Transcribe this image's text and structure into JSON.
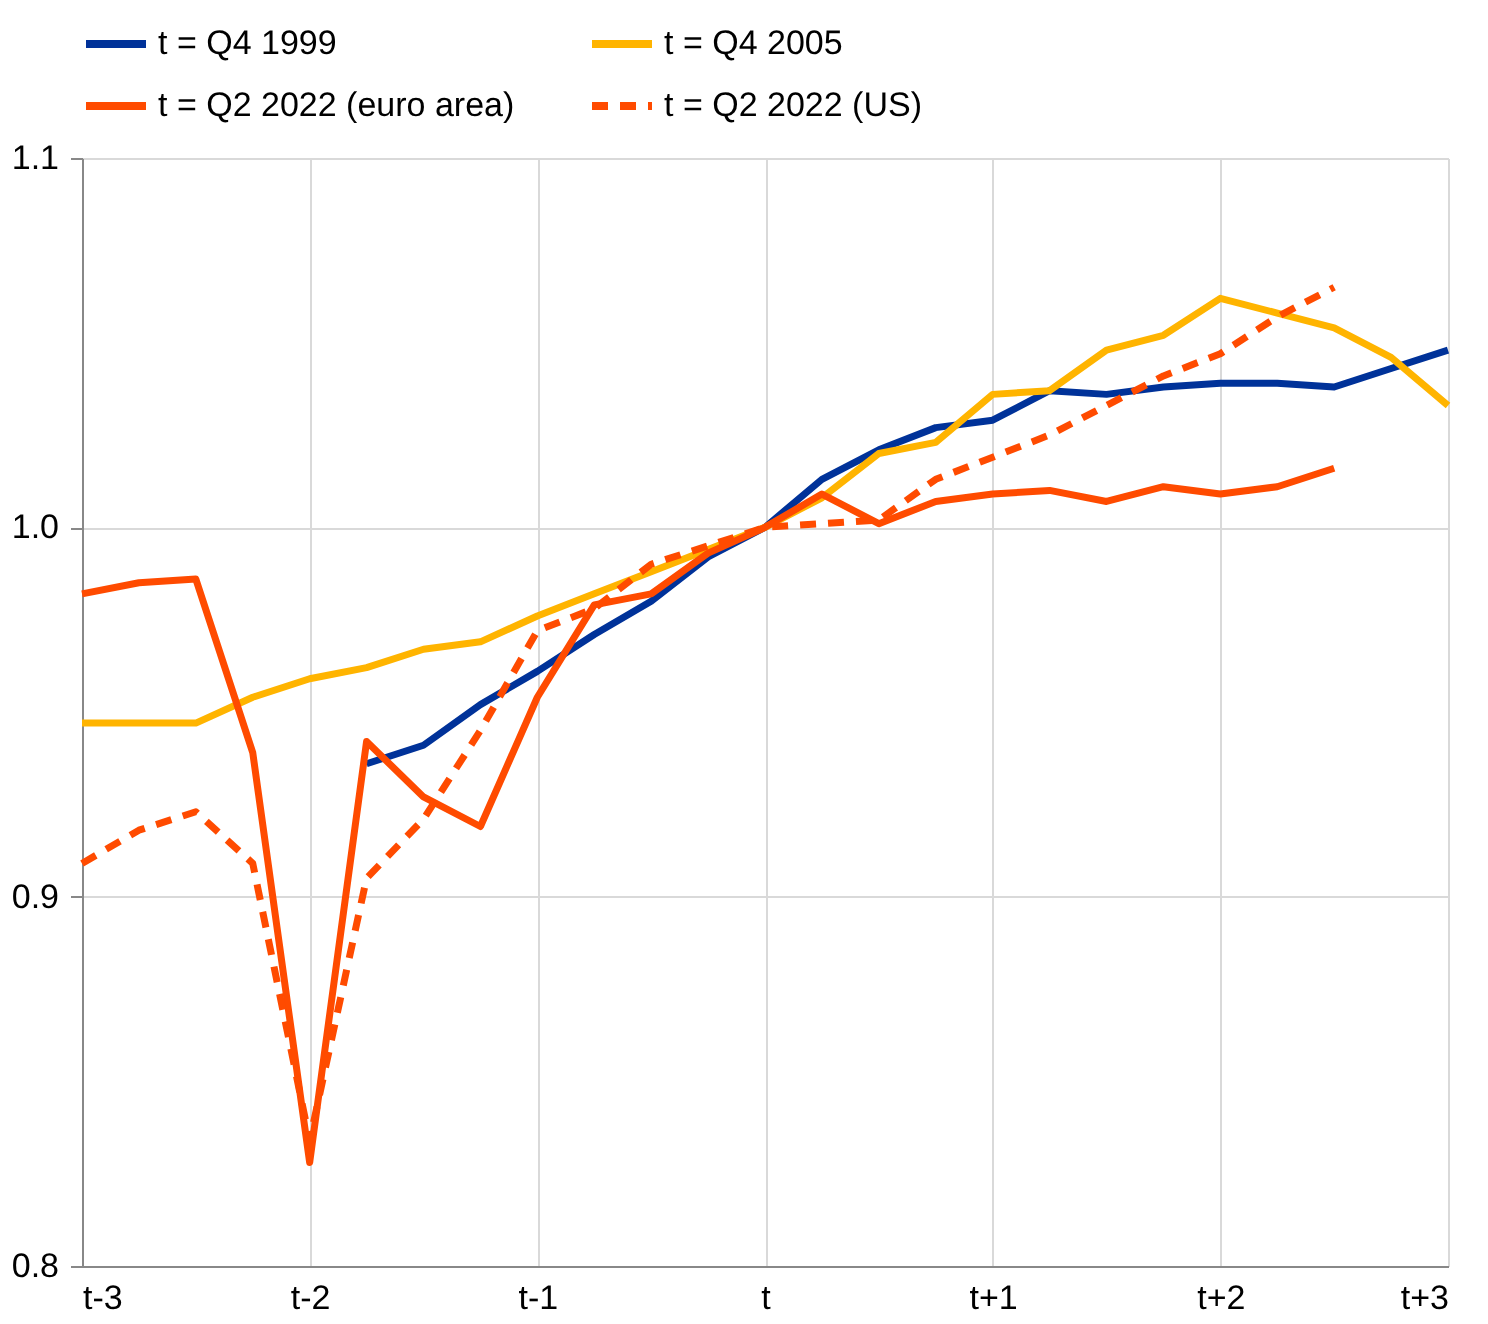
{
  "chart_data": {
    "type": "line",
    "categories": [
      "t-3",
      null,
      null,
      null,
      "t-2",
      null,
      null,
      null,
      "t-1",
      null,
      null,
      null,
      "t",
      null,
      null,
      null,
      "t+1",
      null,
      null,
      null,
      "t+2",
      null,
      null,
      null,
      "t+3"
    ],
    "ylim": [
      0.8,
      1.1
    ],
    "yticks": [
      {
        "value": 0.8,
        "label": "0.8"
      },
      {
        "value": 0.9,
        "label": "0.9"
      },
      {
        "value": 1.0,
        "label": "1.0"
      },
      {
        "value": 1.1,
        "label": "1.1"
      }
    ],
    "grid": true,
    "legend": "top",
    "marker": "none",
    "series": [
      {
        "name": "t = Q4 1999",
        "color": "#003299",
        "line_style": "solid",
        "values": [
          null,
          null,
          null,
          null,
          null,
          0.936,
          0.941,
          0.952,
          0.961,
          0.971,
          0.98,
          0.992,
          1.0,
          1.013,
          1.021,
          1.027,
          1.029,
          1.037,
          1.036,
          1.038,
          1.039,
          1.039,
          1.038,
          1.043,
          1.048
        ]
      },
      {
        "name": "t = Q4 2005",
        "color": "#ffb400",
        "line_style": "solid",
        "values": [
          0.947,
          0.947,
          0.947,
          0.954,
          0.959,
          0.962,
          0.967,
          0.969,
          0.976,
          0.982,
          0.988,
          0.994,
          1.0,
          1.008,
          1.02,
          1.023,
          1.036,
          1.037,
          1.048,
          1.052,
          1.062,
          1.058,
          1.054,
          1.046,
          1.033
        ]
      },
      {
        "name": "t = Q2 2022 (euro area)",
        "color": "#ff4b00",
        "line_style": "solid",
        "values": [
          0.982,
          0.985,
          0.986,
          0.939,
          0.828,
          0.942,
          0.927,
          0.919,
          0.954,
          0.979,
          0.982,
          0.993,
          1.0,
          1.009,
          1.001,
          1.007,
          1.009,
          1.01,
          1.007,
          1.011,
          1.009,
          1.011,
          1.016,
          null,
          null
        ]
      },
      {
        "name": "t = Q2 2022 (US)",
        "color": "#ff4b00",
        "line_style": "dashed",
        "values": [
          0.909,
          0.918,
          0.923,
          0.909,
          0.834,
          0.905,
          0.921,
          0.945,
          0.972,
          0.978,
          0.99,
          0.995,
          1.0,
          1.001,
          1.002,
          1.013,
          1.019,
          1.025,
          1.033,
          1.041,
          1.047,
          1.057,
          1.065,
          null,
          null
        ]
      }
    ]
  }
}
